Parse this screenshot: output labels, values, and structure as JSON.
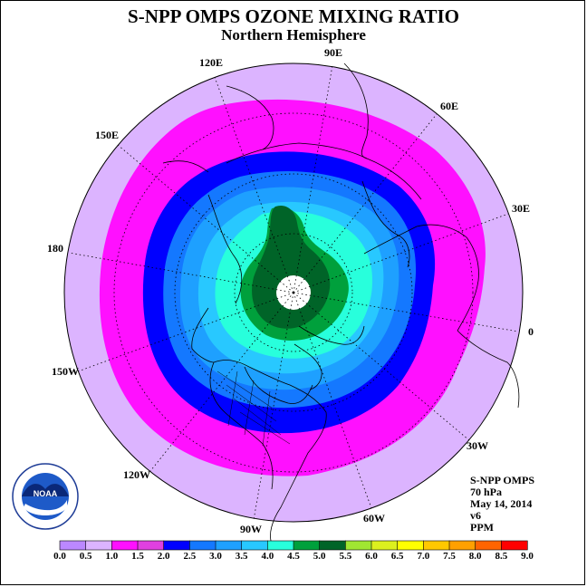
{
  "header": {
    "title": "S-NPP OMPS OZONE MIXING RATIO",
    "subtitle": "Northern Hemisphere"
  },
  "longitude_labels": [
    "90E",
    "60E",
    "30E",
    "0",
    "30W",
    "60W",
    "90W",
    "120W",
    "150W",
    "180",
    "150E",
    "120E"
  ],
  "info": {
    "instrument": "S-NPP OMPS",
    "level": "70 hPa",
    "date": "May 14, 2014",
    "version": "v6",
    "units": "PPM"
  },
  "logo": {
    "text": "NOAA",
    "icon": "noaa-logo-icon"
  },
  "colorbar": {
    "labels": [
      "0.0",
      "0.5",
      "1.0",
      "1.5",
      "2.0",
      "2.5",
      "3.0",
      "3.5",
      "4.0",
      "4.5",
      "5.0",
      "5.5",
      "6.0",
      "6.5",
      "7.0",
      "7.5",
      "8.0",
      "8.5",
      "9.0"
    ],
    "colors": [
      "#bb88ff",
      "#dcb4ff",
      "#ff10ff",
      "#e040e0",
      "#0000ff",
      "#1478ff",
      "#1ea0ff",
      "#28c8ff",
      "#28ffdc",
      "#00a03c",
      "#006428",
      "#a0e632",
      "#dcf01e",
      "#ffff00",
      "#ffc800",
      "#ffa000",
      "#ff6400",
      "#ff0000",
      "#8b5a3c"
    ]
  },
  "map": {
    "projection": "north-polar-stereographic",
    "contour_colors": {
      "lavender": "#dcb4ff",
      "magenta": "#ff10ff",
      "dark_blue": "#0000ff",
      "blue": "#1478ff",
      "mid_blue": "#1ea0ff",
      "light_blue": "#28c8ff",
      "cyan": "#28ffdc",
      "green": "#00a03c",
      "dark_green": "#006428"
    }
  }
}
